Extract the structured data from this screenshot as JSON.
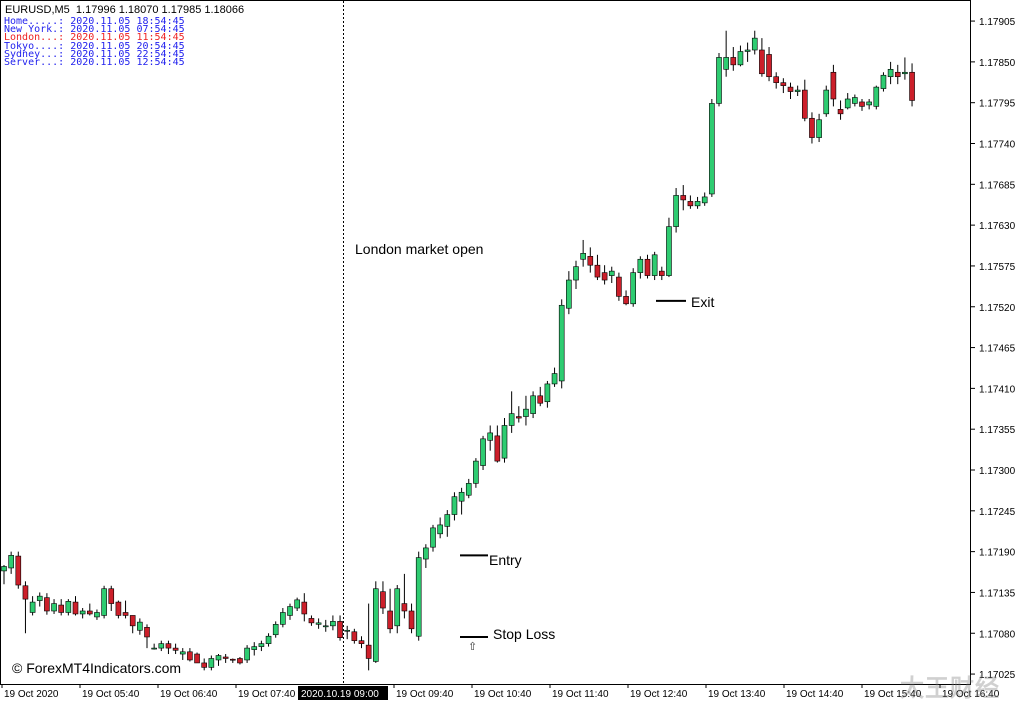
{
  "header": {
    "symbol": "EURUSD,M5",
    "ohlc": "1.17996 1.18070 1.17985 1.18066"
  },
  "clocks": [
    {
      "label": "Home.....:",
      "value": "2020.11.05 18:54:45",
      "color": "#2222ee"
    },
    {
      "label": "New York.:",
      "value": "2020.11.05 07:54:45",
      "color": "#2222ee"
    },
    {
      "label": "London...:",
      "value": "2020.11.05 11:54:45",
      "color": "#ee2222"
    },
    {
      "label": "Tokyo....:",
      "value": "2020.11.05 20:54:45",
      "color": "#2222ee"
    },
    {
      "label": "Sydney...:",
      "value": "2020.11.05 22:54:45",
      "color": "#2222ee"
    },
    {
      "label": "Server...:",
      "value": "2020.11.05 12:54:45",
      "color": "#2222ee"
    }
  ],
  "annotations": {
    "london_open": "London market open",
    "entry": "Entry",
    "stop_loss": "Stop Loss",
    "exit": "Exit",
    "watermark": "© ForexMT4Indicators.com",
    "arrow_glyph": "⇧",
    "corner_logo": "太王财经"
  },
  "colors": {
    "bull": "#2ecc71",
    "bear": "#cc1f2a",
    "wick": "#000000",
    "background": "#ffffff"
  },
  "chart_data": {
    "type": "candlestick",
    "timeframe": "M5",
    "y_ticks": [
      "1.17905",
      "1.17850",
      "1.17795",
      "1.17740",
      "1.17685",
      "1.17630",
      "1.17575",
      "1.17520",
      "1.17465",
      "1.17410",
      "1.17355",
      "1.17300",
      "1.17245",
      "1.17190",
      "1.17135",
      "1.17080",
      "1.17025"
    ],
    "x_ticks": [
      "19 Oct 2020",
      "19 Oct 05:40",
      "19 Oct 06:40",
      "19 Oct 07:40",
      "2020.10.19 09:00",
      "19 Oct 09:40",
      "19 Oct 10:40",
      "19 Oct 11:40",
      "19 Oct 12:40",
      "19 Oct 13:40",
      "19 Oct 14:40",
      "19 Oct 15:40",
      "19 Oct 16:40"
    ],
    "ylim": [
      1.17017,
      1.17928
    ],
    "vertical_marker": "2020.10.19 09:00",
    "levels": {
      "entry": 1.17185,
      "stop_loss": 1.17075,
      "exit": 1.17528
    },
    "candles": [
      [
        1.17164,
        1.17172,
        1.17146,
        1.1717
      ],
      [
        1.17168,
        1.1719,
        1.1716,
        1.17185
      ],
      [
        1.17184,
        1.1719,
        1.1714,
        1.17145
      ],
      [
        1.17144,
        1.1715,
        1.1708,
        1.17126
      ],
      [
        1.17108,
        1.1713,
        1.17104,
        1.17122
      ],
      [
        1.17124,
        1.17135,
        1.17116,
        1.1713
      ],
      [
        1.17128,
        1.17134,
        1.17105,
        1.1711
      ],
      [
        1.1711,
        1.17126,
        1.17106,
        1.1712
      ],
      [
        1.17118,
        1.17126,
        1.17104,
        1.17108
      ],
      [
        1.17108,
        1.17126,
        1.17104,
        1.17123
      ],
      [
        1.17122,
        1.1713,
        1.17104,
        1.17106
      ],
      [
        1.17106,
        1.17114,
        1.171,
        1.1711
      ],
      [
        1.1711,
        1.1712,
        1.17104,
        1.17106
      ],
      [
        1.17102,
        1.17112,
        1.17098,
        1.17108
      ],
      [
        1.17104,
        1.17144,
        1.171,
        1.1714
      ],
      [
        1.1714,
        1.17144,
        1.1711,
        1.1712
      ],
      [
        1.17122,
        1.17124,
        1.171,
        1.17104
      ],
      [
        1.17108,
        1.17124,
        1.171,
        1.17104
      ],
      [
        1.17104,
        1.17104,
        1.1708,
        1.1709
      ],
      [
        1.17084,
        1.171,
        1.17078,
        1.17095
      ],
      [
        1.17088,
        1.17092,
        1.1706,
        1.17075
      ],
      [
        1.1706,
        1.17066,
        1.17058,
        1.1706
      ],
      [
        1.1706,
        1.1707,
        1.17056,
        1.17066
      ],
      [
        1.17066,
        1.1707,
        1.17052,
        1.1706
      ],
      [
        1.1706,
        1.17066,
        1.17052,
        1.17057
      ],
      [
        1.17052,
        1.1706,
        1.17044,
        1.17055
      ],
      [
        1.17055,
        1.1706,
        1.17042,
        1.17044
      ],
      [
        1.17052,
        1.17054,
        1.1704,
        1.1704
      ],
      [
        1.1704,
        1.17046,
        1.1703,
        1.17034
      ],
      [
        1.17034,
        1.1705,
        1.1703,
        1.17046
      ],
      [
        1.17044,
        1.17052,
        1.17036,
        1.1705
      ],
      [
        1.17048,
        1.17052,
        1.1704,
        1.17046
      ],
      [
        1.17045,
        1.17046,
        1.1704,
        1.17044
      ],
      [
        1.17046,
        1.17048,
        1.17038,
        1.1704
      ],
      [
        1.17044,
        1.17064,
        1.1704,
        1.1706
      ],
      [
        1.17058,
        1.17068,
        1.1705,
        1.17062
      ],
      [
        1.17062,
        1.1707,
        1.17056,
        1.17066
      ],
      [
        1.17066,
        1.1708,
        1.17062,
        1.17076
      ],
      [
        1.17078,
        1.17096,
        1.17074,
        1.17092
      ],
      [
        1.17092,
        1.17114,
        1.17088,
        1.17108
      ],
      [
        1.17104,
        1.1712,
        1.17098,
        1.17116
      ],
      [
        1.17114,
        1.17128,
        1.1711,
        1.17125
      ],
      [
        1.17122,
        1.17134,
        1.17096,
        1.17106
      ],
      [
        1.171,
        1.17104,
        1.1709,
        1.17094
      ],
      [
        1.17092,
        1.171,
        1.17086,
        1.17094
      ],
      [
        1.1709,
        1.17098,
        1.17082,
        1.1709
      ],
      [
        1.1709,
        1.17104,
        1.17084,
        1.17096
      ],
      [
        1.17096,
        1.17104,
        1.1707,
        1.17074
      ],
      [
        1.17084,
        1.1709,
        1.17072,
        1.17084
      ],
      [
        1.17082,
        1.17086,
        1.17066,
        1.1707
      ],
      [
        1.1707,
        1.17076,
        1.1706,
        1.17066
      ],
      [
        1.17064,
        1.1712,
        1.1703,
        1.17046
      ],
      [
        1.17042,
        1.1715,
        1.1704,
        1.1714
      ],
      [
        1.17136,
        1.1715,
        1.17106,
        1.17114
      ],
      [
        1.1711,
        1.1714,
        1.1708,
        1.17086
      ],
      [
        1.1709,
        1.17145,
        1.1708,
        1.1714
      ],
      [
        1.1712,
        1.1716,
        1.171,
        1.1711
      ],
      [
        1.1711,
        1.1712,
        1.1708,
        1.17086
      ],
      [
        1.17076,
        1.1719,
        1.1707,
        1.17182
      ],
      [
        1.1718,
        1.172,
        1.17168,
        1.17195
      ],
      [
        1.17196,
        1.17226,
        1.1719,
        1.17222
      ],
      [
        1.17214,
        1.17236,
        1.17208,
        1.17226
      ],
      [
        1.17224,
        1.17246,
        1.1721,
        1.1724
      ],
      [
        1.1724,
        1.1727,
        1.17232,
        1.17264
      ],
      [
        1.17258,
        1.17276,
        1.1724,
        1.1727
      ],
      [
        1.17266,
        1.17288,
        1.17262,
        1.17282
      ],
      [
        1.17282,
        1.17316,
        1.17276,
        1.17312
      ],
      [
        1.17306,
        1.17346,
        1.173,
        1.17342
      ],
      [
        1.1734,
        1.1736,
        1.17326,
        1.1735
      ],
      [
        1.17346,
        1.1736,
        1.1731,
        1.17312
      ],
      [
        1.17316,
        1.1737,
        1.1731,
        1.1736
      ],
      [
        1.1736,
        1.17406,
        1.1735,
        1.17376
      ],
      [
        1.17372,
        1.17386,
        1.17364,
        1.1737
      ],
      [
        1.17372,
        1.174,
        1.1736,
        1.17382
      ],
      [
        1.17376,
        1.17406,
        1.1737,
        1.174
      ],
      [
        1.174,
        1.17412,
        1.17386,
        1.1739
      ],
      [
        1.17392,
        1.1742,
        1.17384,
        1.17416
      ],
      [
        1.17416,
        1.17438,
        1.17412,
        1.1743
      ],
      [
        1.1742,
        1.1753,
        1.1741,
        1.17522
      ],
      [
        1.17518,
        1.17568,
        1.1751,
        1.17556
      ],
      [
        1.17556,
        1.17582,
        1.17544,
        1.17574
      ],
      [
        1.17584,
        1.1761,
        1.17574,
        1.17592
      ],
      [
        1.17588,
        1.176,
        1.17566,
        1.17576
      ],
      [
        1.17576,
        1.1759,
        1.17556,
        1.1756
      ],
      [
        1.17566,
        1.17576,
        1.1755,
        1.17556
      ],
      [
        1.17562,
        1.17574,
        1.17552,
        1.17568
      ],
      [
        1.1756,
        1.17566,
        1.17528,
        1.17534
      ],
      [
        1.17534,
        1.17542,
        1.17522,
        1.17524
      ],
      [
        1.17524,
        1.17572,
        1.1752,
        1.17566
      ],
      [
        1.17566,
        1.17588,
        1.17558,
        1.17584
      ],
      [
        1.17584,
        1.1759,
        1.17558,
        1.17562
      ],
      [
        1.17562,
        1.17594,
        1.17556,
        1.1759
      ],
      [
        1.17568,
        1.17574,
        1.17556,
        1.17562
      ],
      [
        1.17562,
        1.1764,
        1.1756,
        1.17628
      ],
      [
        1.17628,
        1.1768,
        1.1762,
        1.1767
      ],
      [
        1.1767,
        1.17684,
        1.1765,
        1.17664
      ],
      [
        1.17662,
        1.1767,
        1.17652,
        1.17656
      ],
      [
        1.17656,
        1.17668,
        1.17652,
        1.17662
      ],
      [
        1.1766,
        1.17674,
        1.17656,
        1.17668
      ],
      [
        1.17672,
        1.178,
        1.17668,
        1.17794
      ],
      [
        1.17794,
        1.17862,
        1.1779,
        1.17856
      ],
      [
        1.1784,
        1.17892,
        1.1783,
        1.17856
      ],
      [
        1.17856,
        1.1787,
        1.17838,
        1.17846
      ],
      [
        1.17846,
        1.17872,
        1.17844,
        1.17864
      ],
      [
        1.17864,
        1.17876,
        1.1785,
        1.17866
      ],
      [
        1.17866,
        1.17892,
        1.1786,
        1.17882
      ],
      [
        1.17866,
        1.17882,
        1.1783,
        1.17834
      ],
      [
        1.1786,
        1.1787,
        1.17824,
        1.1783
      ],
      [
        1.1783,
        1.17836,
        1.17814,
        1.17822
      ],
      [
        1.17822,
        1.17828,
        1.17808,
        1.17818
      ],
      [
        1.17816,
        1.17822,
        1.178,
        1.1781
      ],
      [
        1.1781,
        1.17818,
        1.17804,
        1.17812
      ],
      [
        1.17812,
        1.17826,
        1.1777,
        1.17774
      ],
      [
        1.17774,
        1.17782,
        1.1774,
        1.17748
      ],
      [
        1.17748,
        1.1778,
        1.17742,
        1.17772
      ],
      [
        1.1778,
        1.17818,
        1.17776,
        1.17812
      ],
      [
        1.17836,
        1.17846,
        1.1779,
        1.178
      ],
      [
        1.17786,
        1.17798,
        1.17772,
        1.1778
      ],
      [
        1.17788,
        1.17808,
        1.17786,
        1.178
      ],
      [
        1.17794,
        1.17806,
        1.1779,
        1.17802
      ],
      [
        1.17796,
        1.178,
        1.17784,
        1.1779
      ],
      [
        1.17792,
        1.178,
        1.17786,
        1.17796
      ],
      [
        1.1779,
        1.17818,
        1.17786,
        1.17816
      ],
      [
        1.17814,
        1.17836,
        1.1781,
        1.17832
      ],
      [
        1.1783,
        1.1785,
        1.1782,
        1.1784
      ],
      [
        1.17836,
        1.17846,
        1.1782,
        1.1783
      ],
      [
        1.17834,
        1.17856,
        1.17826,
        1.17836
      ],
      [
        1.17836,
        1.17848,
        1.1779,
        1.17798
      ]
    ]
  }
}
